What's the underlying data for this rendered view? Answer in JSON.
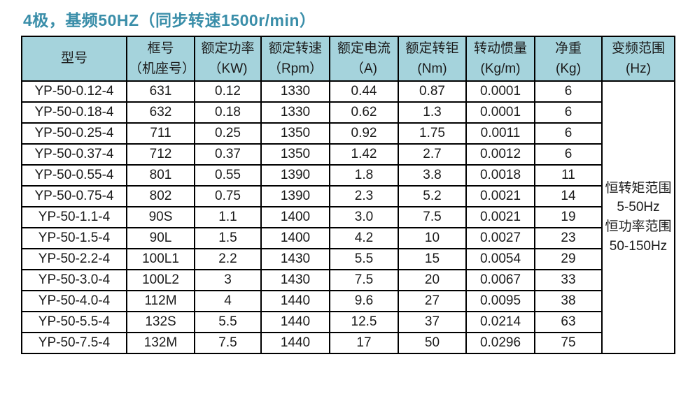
{
  "title": "4极，基频50HZ（同步转速1500r/min）",
  "colors": {
    "title_text": "#3a8ea9",
    "header_bg": "#a5d3dc",
    "border": "#000000",
    "body_text": "#1a1a1a"
  },
  "table": {
    "headers": [
      {
        "l1": "型号",
        "l2": ""
      },
      {
        "l1": "框号",
        "l2": "（机座号）"
      },
      {
        "l1": "额定功率",
        "l2": "（KW)"
      },
      {
        "l1": "额定转速",
        "l2": "（Rpm）"
      },
      {
        "l1": "额定电流",
        "l2": "（A)"
      },
      {
        "l1": "额定转钜",
        "l2": "(Nm)"
      },
      {
        "l1": "转动惯量",
        "l2": "(Kg/m)"
      },
      {
        "l1": "净重",
        "l2": "(Kg)"
      },
      {
        "l1": "变频范围",
        "l2": "(Hz)"
      }
    ],
    "rows": [
      [
        "YP-50-0.12-4",
        "631",
        "0.12",
        "1330",
        "0.44",
        "0.87",
        "0.0001",
        "6"
      ],
      [
        "YP-50-0.18-4",
        "632",
        "0.18",
        "1330",
        "0.62",
        "1.3",
        "0.0001",
        "6"
      ],
      [
        "YP-50-0.25-4",
        "711",
        "0.25",
        "1350",
        "0.92",
        "1.75",
        "0.0011",
        "6"
      ],
      [
        "YP-50-0.37-4",
        "712",
        "0.37",
        "1350",
        "1.42",
        "2.7",
        "0.0012",
        "6"
      ],
      [
        "YP-50-0.55-4",
        "801",
        "0.55",
        "1390",
        "1.8",
        "3.8",
        "0.0018",
        "11"
      ],
      [
        "YP-50-0.75-4",
        "802",
        "0.75",
        "1390",
        "2.3",
        "5.2",
        "0.0021",
        "14"
      ],
      [
        "YP-50-1.1-4",
        "90S",
        "1.1",
        "1400",
        "3.0",
        "7.5",
        "0.0021",
        "19"
      ],
      [
        "YP-50-1.5-4",
        "90L",
        "1.5",
        "1400",
        "4.2",
        "10",
        "0.0027",
        "23"
      ],
      [
        "YP-50-2.2-4",
        "100L1",
        "2.2",
        "1430",
        "5.5",
        "15",
        "0.0054",
        "29"
      ],
      [
        "YP-50-3.0-4",
        "100L2",
        "3",
        "1430",
        "7.5",
        "20",
        "0.0067",
        "33"
      ],
      [
        "YP-50-4.0-4",
        "112M",
        "4",
        "1440",
        "9.6",
        "27",
        "0.0095",
        "38"
      ],
      [
        "YP-50-5.5-4",
        "132S",
        "5.5",
        "1440",
        "12.5",
        "37",
        "0.0214",
        "63"
      ],
      [
        "YP-50-7.5-4",
        "132M",
        "7.5",
        "1440",
        "17",
        "50",
        "0.0296",
        "75"
      ]
    ],
    "freq_range": {
      "line1": "恒转矩范围",
      "line2": "5-50Hz",
      "line3": "恒功率范围",
      "line4": "50-150Hz"
    }
  }
}
